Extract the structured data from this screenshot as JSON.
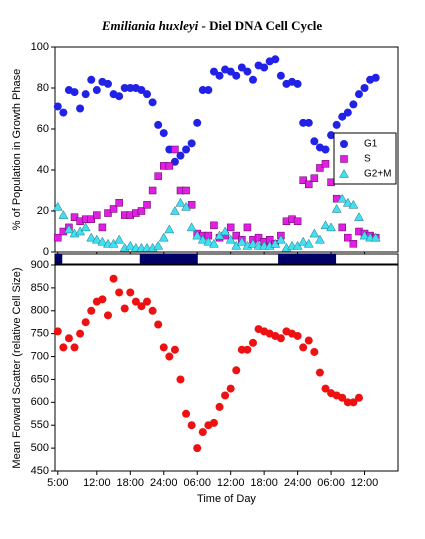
{
  "chart_data": [
    {
      "type": "scatter",
      "title_species": "Emiliania huxleyi",
      "title_rest": " - Diel DNA Cell Cycle",
      "ylabel": "% of Population in Growth Phase",
      "xlim": [
        4.5,
        66
      ],
      "ylim": [
        0,
        100
      ],
      "yticks": [
        0,
        20,
        40,
        60,
        80,
        100
      ],
      "legend": "upper right",
      "dark_periods": [
        [
          4.5,
          5.8
        ],
        [
          19.7,
          30.1
        ],
        [
          44.5,
          54.9
        ]
      ],
      "x": [
        5,
        6,
        7,
        8,
        9,
        10,
        11,
        12,
        13,
        14,
        15,
        16,
        17,
        18,
        19,
        20,
        21,
        22,
        23,
        24,
        25,
        26,
        27,
        28,
        29,
        30,
        31,
        32,
        33,
        34,
        35,
        36,
        37,
        38,
        39,
        40,
        41,
        42,
        43,
        44,
        45,
        46,
        47,
        48,
        49,
        50,
        51,
        52,
        53,
        54,
        55,
        56,
        57,
        58,
        59,
        60,
        61,
        62
      ],
      "series": [
        {
          "name": "G1",
          "color": "#2222e6",
          "marker": "circle",
          "values": [
            71,
            68,
            79,
            78,
            70,
            77,
            84,
            79,
            83,
            82,
            77,
            76,
            80,
            80,
            80,
            79,
            77,
            73,
            62,
            58,
            50,
            44,
            47,
            50,
            53,
            63,
            79,
            79,
            88,
            86,
            89,
            88,
            86,
            90,
            88,
            84,
            91,
            90,
            93,
            94,
            86,
            82,
            83,
            82,
            63,
            63,
            54,
            51,
            50,
            57,
            62,
            66,
            68,
            72,
            77,
            80,
            84,
            85
          ]
        },
        {
          "name": "S",
          "color": "#e020e0",
          "marker": "square",
          "values": [
            7,
            10,
            12,
            17,
            15,
            16,
            16,
            18,
            12,
            19,
            21,
            24,
            18,
            18,
            19,
            20,
            23,
            30,
            37,
            42,
            42,
            50,
            30,
            30,
            23,
            9,
            8,
            8,
            13,
            7,
            8,
            12,
            8,
            6,
            12,
            6,
            7,
            5,
            6,
            4,
            8,
            15,
            16,
            15,
            35,
            33,
            36,
            41,
            43,
            34,
            26,
            12,
            7,
            4,
            10,
            9,
            8,
            7
          ]
        },
        {
          "name": "G2+M",
          "color": "#40e0f0",
          "marker": "triangle",
          "values": [
            22,
            18,
            11,
            9,
            10,
            12,
            7,
            6,
            5,
            4,
            4,
            6,
            2,
            3,
            2,
            2,
            2,
            2,
            3,
            7,
            11,
            20,
            24,
            22,
            12,
            8,
            6,
            5,
            4,
            8,
            10,
            6,
            3,
            5,
            3,
            4,
            3,
            3,
            3,
            4,
            6,
            2,
            3,
            3,
            5,
            4,
            9,
            6,
            13,
            12,
            21,
            26,
            24,
            23,
            17,
            8,
            7,
            7
          ]
        }
      ]
    },
    {
      "type": "scatter",
      "ylabel": "Mean Forward Scatter (relative Cell Size)",
      "xlabel": "Time of Day",
      "xlim": [
        4.5,
        66
      ],
      "ylim": [
        450,
        900
      ],
      "yticks": [
        450,
        500,
        550,
        600,
        650,
        700,
        750,
        800,
        850,
        900
      ],
      "xticks": [
        {
          "value": 5,
          "label": "5:00"
        },
        {
          "value": 12,
          "label": "12:00"
        },
        {
          "value": 18,
          "label": "18:00"
        },
        {
          "value": 24,
          "label": "24:00"
        },
        {
          "value": 30,
          "label": "06:00"
        },
        {
          "value": 36,
          "label": "12:00"
        },
        {
          "value": 42,
          "label": "18:00"
        },
        {
          "value": 48,
          "label": "24:00"
        },
        {
          "value": 54,
          "label": "06:00"
        },
        {
          "value": 60,
          "label": "12:00"
        }
      ],
      "x": [
        5,
        6,
        7,
        8,
        9,
        10,
        11,
        12,
        13,
        14,
        15,
        16,
        17,
        18,
        19,
        20,
        21,
        22,
        23,
        24,
        25,
        26,
        27,
        28,
        29,
        30,
        31,
        32,
        33,
        34,
        35,
        36,
        37,
        38,
        39,
        40,
        41,
        42,
        43,
        44,
        45,
        46,
        47,
        48,
        49,
        50,
        51,
        52,
        53,
        54,
        55,
        56,
        57,
        58,
        59
      ],
      "series": [
        {
          "name": null,
          "color": "#ee1111",
          "marker": "circle",
          "values": [
            755,
            720,
            740,
            720,
            750,
            775,
            800,
            820,
            825,
            790,
            870,
            840,
            805,
            840,
            820,
            810,
            820,
            800,
            770,
            720,
            700,
            715,
            650,
            575,
            550,
            500,
            535,
            550,
            555,
            590,
            615,
            630,
            670,
            715,
            715,
            730,
            760,
            755,
            750,
            745,
            740,
            755,
            750,
            745,
            720,
            735,
            710,
            665,
            630,
            620,
            615,
            610,
            600,
            600,
            610
          ]
        }
      ]
    }
  ]
}
